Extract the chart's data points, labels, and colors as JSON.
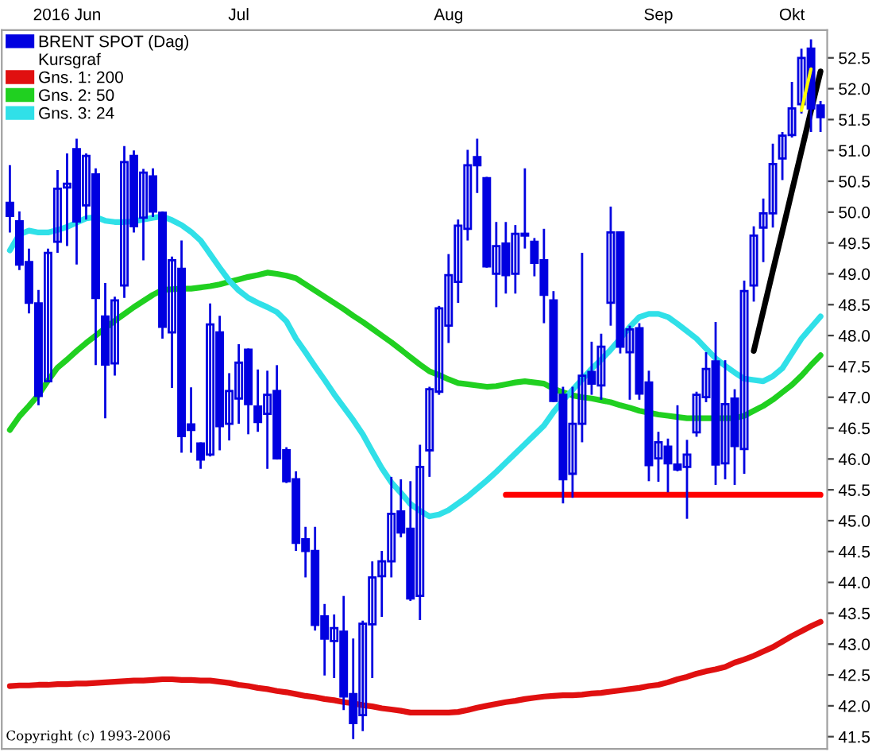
{
  "chart_data": {
    "type": "candlestick",
    "legend": "top left",
    "legend_title": "Kursgraf",
    "grid": false,
    "categories": [
      null,
      null,
      null,
      null,
      null,
      null,
      "2016 Jun",
      null,
      null,
      null,
      null,
      null,
      null,
      null,
      null,
      null,
      null,
      null,
      null,
      null,
      null,
      null,
      null,
      null,
      "Jul",
      null,
      null,
      null,
      null,
      null,
      null,
      null,
      null,
      null,
      null,
      null,
      null,
      null,
      null,
      null,
      null,
      null,
      null,
      null,
      null,
      null,
      "Aug",
      null,
      null,
      null,
      null,
      null,
      null,
      null,
      null,
      null,
      null,
      null,
      null,
      null,
      null,
      null,
      null,
      null,
      null,
      null,
      null,
      null,
      "Sep",
      null,
      null,
      null,
      null,
      null,
      null,
      null,
      null,
      null,
      null,
      null,
      null,
      null,
      "Okt",
      null,
      null,
      null
    ],
    "ylim": [
      41.3,
      52.95
    ],
    "yticks": [
      41.5,
      {
        "value": 42,
        "label": "42.0"
      },
      42.5,
      {
        "value": 43,
        "label": "43.0"
      },
      43.5,
      {
        "value": 44,
        "label": "44.0"
      },
      44.5,
      {
        "value": 45,
        "label": "45.0"
      },
      45.5,
      {
        "value": 46,
        "label": "46.0"
      },
      46.5,
      {
        "value": 47,
        "label": "47.0"
      },
      47.5,
      {
        "value": 48,
        "label": "48.0"
      },
      48.5,
      {
        "value": 49,
        "label": "49.0"
      },
      49.5,
      {
        "value": 50,
        "label": "50.0"
      },
      50.5,
      {
        "value": 51,
        "label": "51.0"
      },
      51.5,
      {
        "value": 52,
        "label": "52.0"
      },
      52.5
    ],
    "annotations": [
      "Copyright (c) 1993-2006"
    ],
    "series": [
      {
        "name": "BRENT SPOT (Dag)",
        "type": "candlestick",
        "color": "#0000e0",
        "ohlc": [
          [
            50.15,
            50.76,
            49.67,
            49.94
          ],
          [
            49.85,
            50.01,
            49.06,
            49.15
          ],
          [
            49.19,
            49.41,
            48.36,
            48.53
          ],
          [
            48.52,
            48.74,
            46.87,
            47.02
          ],
          [
            47.26,
            49.41,
            47.24,
            49.34
          ],
          [
            49.52,
            50.68,
            49.34,
            50.38
          ],
          [
            50.4,
            50.95,
            49.45,
            50.46
          ],
          [
            51.02,
            51.19,
            49.15,
            49.85
          ],
          [
            50.11,
            50.95,
            49.88,
            50.91
          ],
          [
            50.61,
            50.71,
            47.52,
            48.61
          ],
          [
            48.31,
            48.85,
            46.66,
            47.53
          ],
          [
            47.55,
            48.63,
            47.35,
            48.57
          ],
          [
            48.81,
            51.07,
            48.61,
            50.81
          ],
          [
            50.91,
            51.0,
            49.67,
            49.77
          ],
          [
            49.91,
            50.7,
            49.22,
            50.64
          ],
          [
            50.58,
            50.71,
            49.92,
            50.01
          ],
          [
            49.99,
            50.01,
            47.95,
            48.14
          ],
          [
            48.05,
            49.28,
            47.15,
            49.22
          ],
          [
            49.08,
            49.54,
            46.1,
            46.37
          ],
          [
            46.56,
            47.16,
            46.1,
            46.47
          ],
          [
            46.25,
            46.27,
            45.84,
            45.99
          ],
          [
            46.07,
            48.52,
            46.04,
            48.18
          ],
          [
            48.05,
            48.32,
            46.14,
            46.53
          ],
          [
            46.57,
            47.39,
            46.3,
            47.1
          ],
          [
            46.98,
            47.86,
            46.57,
            47.56
          ],
          [
            47.77,
            47.79,
            46.4,
            46.89
          ],
          [
            46.85,
            47.45,
            46.44,
            46.6
          ],
          [
            46.73,
            47.43,
            45.84,
            47.04
          ],
          [
            47.1,
            47.52,
            45.99,
            46.01
          ],
          [
            46.14,
            46.19,
            45.61,
            45.64
          ],
          [
            45.67,
            45.8,
            44.51,
            44.64
          ],
          [
            44.7,
            44.9,
            44.08,
            44.51
          ],
          [
            44.51,
            44.9,
            43.22,
            43.31
          ],
          [
            43.45,
            43.65,
            42.49,
            43.09
          ],
          [
            43.05,
            43.48,
            42.45,
            43.26
          ],
          [
            43.2,
            43.78,
            41.93,
            42.15
          ],
          [
            42.19,
            43.09,
            41.46,
            41.72
          ],
          [
            41.85,
            43.38,
            41.59,
            43.33
          ],
          [
            43.32,
            44.34,
            42.45,
            44.08
          ],
          [
            44.1,
            44.51,
            43.44,
            44.34
          ],
          [
            44.34,
            45.71,
            44.08,
            45.11
          ],
          [
            45.15,
            45.67,
            44.73,
            44.81
          ],
          [
            44.87,
            45.64,
            43.7,
            43.74
          ],
          [
            43.78,
            46.23,
            43.39,
            45.87
          ],
          [
            46.14,
            47.17,
            45.71,
            47.13
          ],
          [
            47.09,
            48.48,
            47.04,
            48.44
          ],
          [
            48.16,
            49.32,
            47.88,
            48.98
          ],
          [
            48.87,
            49.88,
            48.53,
            49.78
          ],
          [
            49.73,
            51.01,
            49.54,
            50.76
          ],
          [
            50.89,
            51.19,
            50.31,
            50.76
          ],
          [
            50.55,
            50.57,
            49.1,
            49.12
          ],
          [
            49.0,
            49.84,
            48.46,
            49.45
          ],
          [
            49.49,
            49.84,
            48.68,
            48.98
          ],
          [
            49.0,
            49.79,
            48.68,
            49.65
          ],
          [
            49.62,
            50.71,
            49.41,
            49.65
          ],
          [
            49.52,
            49.58,
            48.96,
            49.18
          ],
          [
            49.22,
            49.73,
            48.2,
            48.66
          ],
          [
            48.57,
            48.72,
            46.92,
            46.94
          ],
          [
            47.04,
            47.17,
            45.28,
            45.67
          ],
          [
            45.76,
            47.17,
            45.37,
            46.57
          ],
          [
            46.57,
            49.34,
            46.27,
            47.35
          ],
          [
            47.41,
            47.9,
            47.04,
            47.22
          ],
          [
            47.19,
            48.03,
            46.96,
            47.82
          ],
          [
            48.53,
            50.09,
            48.16,
            49.67
          ],
          [
            49.67,
            49.69,
            47.71,
            47.82
          ],
          [
            47.73,
            48.16,
            46.96,
            48.1
          ],
          [
            48.12,
            48.2,
            46.96,
            47.06
          ],
          [
            47.24,
            47.43,
            45.64,
            45.9
          ],
          [
            46.01,
            46.44,
            45.63,
            46.27
          ],
          [
            46.2,
            46.33,
            45.46,
            45.93
          ],
          [
            45.91,
            46.87,
            45.8,
            45.83
          ],
          [
            45.87,
            46.31,
            45.03,
            46.07
          ],
          [
            46.43,
            47.09,
            46.36,
            47.04
          ],
          [
            47.0,
            47.73,
            46.92,
            47.46
          ],
          [
            47.58,
            48.22,
            45.58,
            45.91
          ],
          [
            45.93,
            47.6,
            45.67,
            46.89
          ],
          [
            46.98,
            47.13,
            45.58,
            46.21
          ],
          [
            46.16,
            48.89,
            45.76,
            48.72
          ],
          [
            48.81,
            49.77,
            48.55,
            49.62
          ],
          [
            49.75,
            50.22,
            49.19,
            49.98
          ],
          [
            49.98,
            51.11,
            49.75,
            50.78
          ],
          [
            50.87,
            51.3,
            50.52,
            51.24
          ],
          [
            51.25,
            52.11,
            51.21,
            51.68
          ],
          [
            51.75,
            52.65,
            51.6,
            52.5
          ],
          [
            52.65,
            52.8,
            51.3,
            51.68
          ],
          [
            51.73,
            51.8,
            51.3,
            51.54
          ]
        ]
      },
      {
        "name": "Gns. 1: 200",
        "type": "line",
        "color": "#e01010",
        "values": [
          42.32,
          42.33,
          42.33,
          42.34,
          42.34,
          42.35,
          42.35,
          42.36,
          42.36,
          42.37,
          42.38,
          42.39,
          42.4,
          42.41,
          42.41,
          42.42,
          42.43,
          42.43,
          42.42,
          42.42,
          42.41,
          42.41,
          42.39,
          42.37,
          42.34,
          42.32,
          42.29,
          42.27,
          42.24,
          42.22,
          42.19,
          42.16,
          42.14,
          42.11,
          42.09,
          42.06,
          42.04,
          42.01,
          41.99,
          41.96,
          41.94,
          41.92,
          41.89,
          41.89,
          41.89,
          41.89,
          41.89,
          41.9,
          41.93,
          41.97,
          42.0,
          42.03,
          42.06,
          42.08,
          42.11,
          42.13,
          42.15,
          42.16,
          42.17,
          42.17,
          42.18,
          42.2,
          42.21,
          42.23,
          42.25,
          42.27,
          42.29,
          42.32,
          42.34,
          42.38,
          42.43,
          42.47,
          42.52,
          42.56,
          42.59,
          42.63,
          42.7,
          42.75,
          42.81,
          42.88,
          42.95,
          43.04,
          43.13,
          43.21,
          43.29,
          43.36
        ]
      },
      {
        "name": "Gns. 2: 50",
        "type": "line",
        "color": "#20d020",
        "values": [
          46.47,
          46.69,
          46.86,
          47.04,
          47.27,
          47.48,
          47.61,
          47.75,
          47.88,
          48.0,
          48.12,
          48.24,
          48.35,
          48.46,
          48.56,
          48.66,
          48.74,
          48.75,
          48.76,
          48.76,
          48.78,
          48.8,
          48.83,
          48.87,
          48.91,
          48.95,
          48.98,
          49.02,
          49.0,
          48.97,
          48.93,
          48.83,
          48.73,
          48.63,
          48.53,
          48.43,
          48.32,
          48.22,
          48.11,
          48.0,
          47.89,
          47.77,
          47.65,
          47.53,
          47.42,
          47.36,
          47.29,
          47.23,
          47.21,
          47.19,
          47.17,
          47.18,
          47.21,
          47.24,
          47.26,
          47.24,
          47.22,
          47.14,
          47.08,
          47.03,
          47.0,
          46.98,
          46.95,
          46.92,
          46.87,
          46.83,
          46.78,
          46.75,
          46.72,
          46.7,
          46.68,
          46.66,
          46.66,
          46.66,
          46.66,
          46.66,
          46.66,
          46.7,
          46.78,
          46.86,
          46.96,
          47.08,
          47.2,
          47.35,
          47.52,
          47.68
        ]
      },
      {
        "name": "Gns. 3: 24",
        "type": "line",
        "color": "#30e0e8",
        "values": [
          49.38,
          49.64,
          49.7,
          49.67,
          49.67,
          49.71,
          49.76,
          49.83,
          49.9,
          49.92,
          49.86,
          49.84,
          49.84,
          49.85,
          49.88,
          49.91,
          49.93,
          49.87,
          49.79,
          49.68,
          49.54,
          49.32,
          49.1,
          48.89,
          48.73,
          48.61,
          48.53,
          48.46,
          48.38,
          48.23,
          47.95,
          47.73,
          47.5,
          47.28,
          47.05,
          46.84,
          46.63,
          46.4,
          46.12,
          45.85,
          45.62,
          45.45,
          45.27,
          45.16,
          45.07,
          45.1,
          45.17,
          45.28,
          45.39,
          45.52,
          45.65,
          45.79,
          45.94,
          46.09,
          46.24,
          46.39,
          46.54,
          46.76,
          46.95,
          47.12,
          47.29,
          47.46,
          47.61,
          47.77,
          47.95,
          48.14,
          48.3,
          48.35,
          48.35,
          48.3,
          48.19,
          48.07,
          47.95,
          47.79,
          47.63,
          47.51,
          47.4,
          47.3,
          47.28,
          47.26,
          47.34,
          47.47,
          47.71,
          47.95,
          48.13,
          48.31
        ]
      },
      {
        "type": "line",
        "color": "#ff0000",
        "values": [
          null,
          null,
          null,
          null,
          null,
          null,
          null,
          null,
          null,
          null,
          null,
          null,
          null,
          null,
          null,
          null,
          null,
          null,
          null,
          null,
          null,
          null,
          null,
          null,
          null,
          null,
          null,
          null,
          null,
          null,
          null,
          null,
          null,
          null,
          null,
          null,
          null,
          null,
          null,
          null,
          null,
          null,
          null,
          null,
          null,
          null,
          null,
          null,
          null,
          null,
          null,
          null,
          45.42,
          45.42,
          45.42,
          45.42,
          45.42,
          45.42,
          45.42,
          45.42,
          45.42,
          45.42,
          45.42,
          45.42,
          45.42,
          45.42,
          45.42,
          45.42,
          45.42,
          45.42,
          45.42,
          45.42,
          45.42,
          45.42,
          45.42,
          45.42,
          45.42,
          45.42,
          45.42,
          45.42,
          45.42,
          45.42,
          45.42,
          45.42,
          45.42,
          45.42
        ]
      },
      {
        "type": "line",
        "color": "#000000",
        "values": [
          null,
          null,
          null,
          null,
          null,
          null,
          null,
          null,
          null,
          null,
          null,
          null,
          null,
          null,
          null,
          null,
          null,
          null,
          null,
          null,
          null,
          null,
          null,
          null,
          null,
          null,
          null,
          null,
          null,
          null,
          null,
          null,
          null,
          null,
          null,
          null,
          null,
          null,
          null,
          null,
          null,
          null,
          null,
          null,
          null,
          null,
          null,
          null,
          null,
          null,
          null,
          null,
          null,
          null,
          null,
          null,
          null,
          null,
          null,
          null,
          null,
          null,
          null,
          null,
          null,
          null,
          null,
          null,
          null,
          null,
          null,
          null,
          null,
          null,
          null,
          null,
          null,
          null,
          47.75,
          48.4,
          49.05,
          49.69,
          50.34,
          50.99,
          51.64,
          52.28
        ]
      },
      {
        "type": "line",
        "color": "#ffff00",
        "values": [
          null,
          null,
          null,
          null,
          null,
          null,
          null,
          null,
          null,
          null,
          null,
          null,
          null,
          null,
          null,
          null,
          null,
          null,
          null,
          null,
          null,
          null,
          null,
          null,
          null,
          null,
          null,
          null,
          null,
          null,
          null,
          null,
          null,
          null,
          null,
          null,
          null,
          null,
          null,
          null,
          null,
          null,
          null,
          null,
          null,
          null,
          null,
          null,
          null,
          null,
          null,
          null,
          null,
          null,
          null,
          null,
          null,
          null,
          null,
          null,
          null,
          null,
          null,
          null,
          null,
          null,
          null,
          null,
          null,
          null,
          null,
          null,
          null,
          null,
          null,
          null,
          null,
          null,
          null,
          null,
          null,
          null,
          null,
          51.65,
          52.32,
          null
        ]
      }
    ]
  }
}
